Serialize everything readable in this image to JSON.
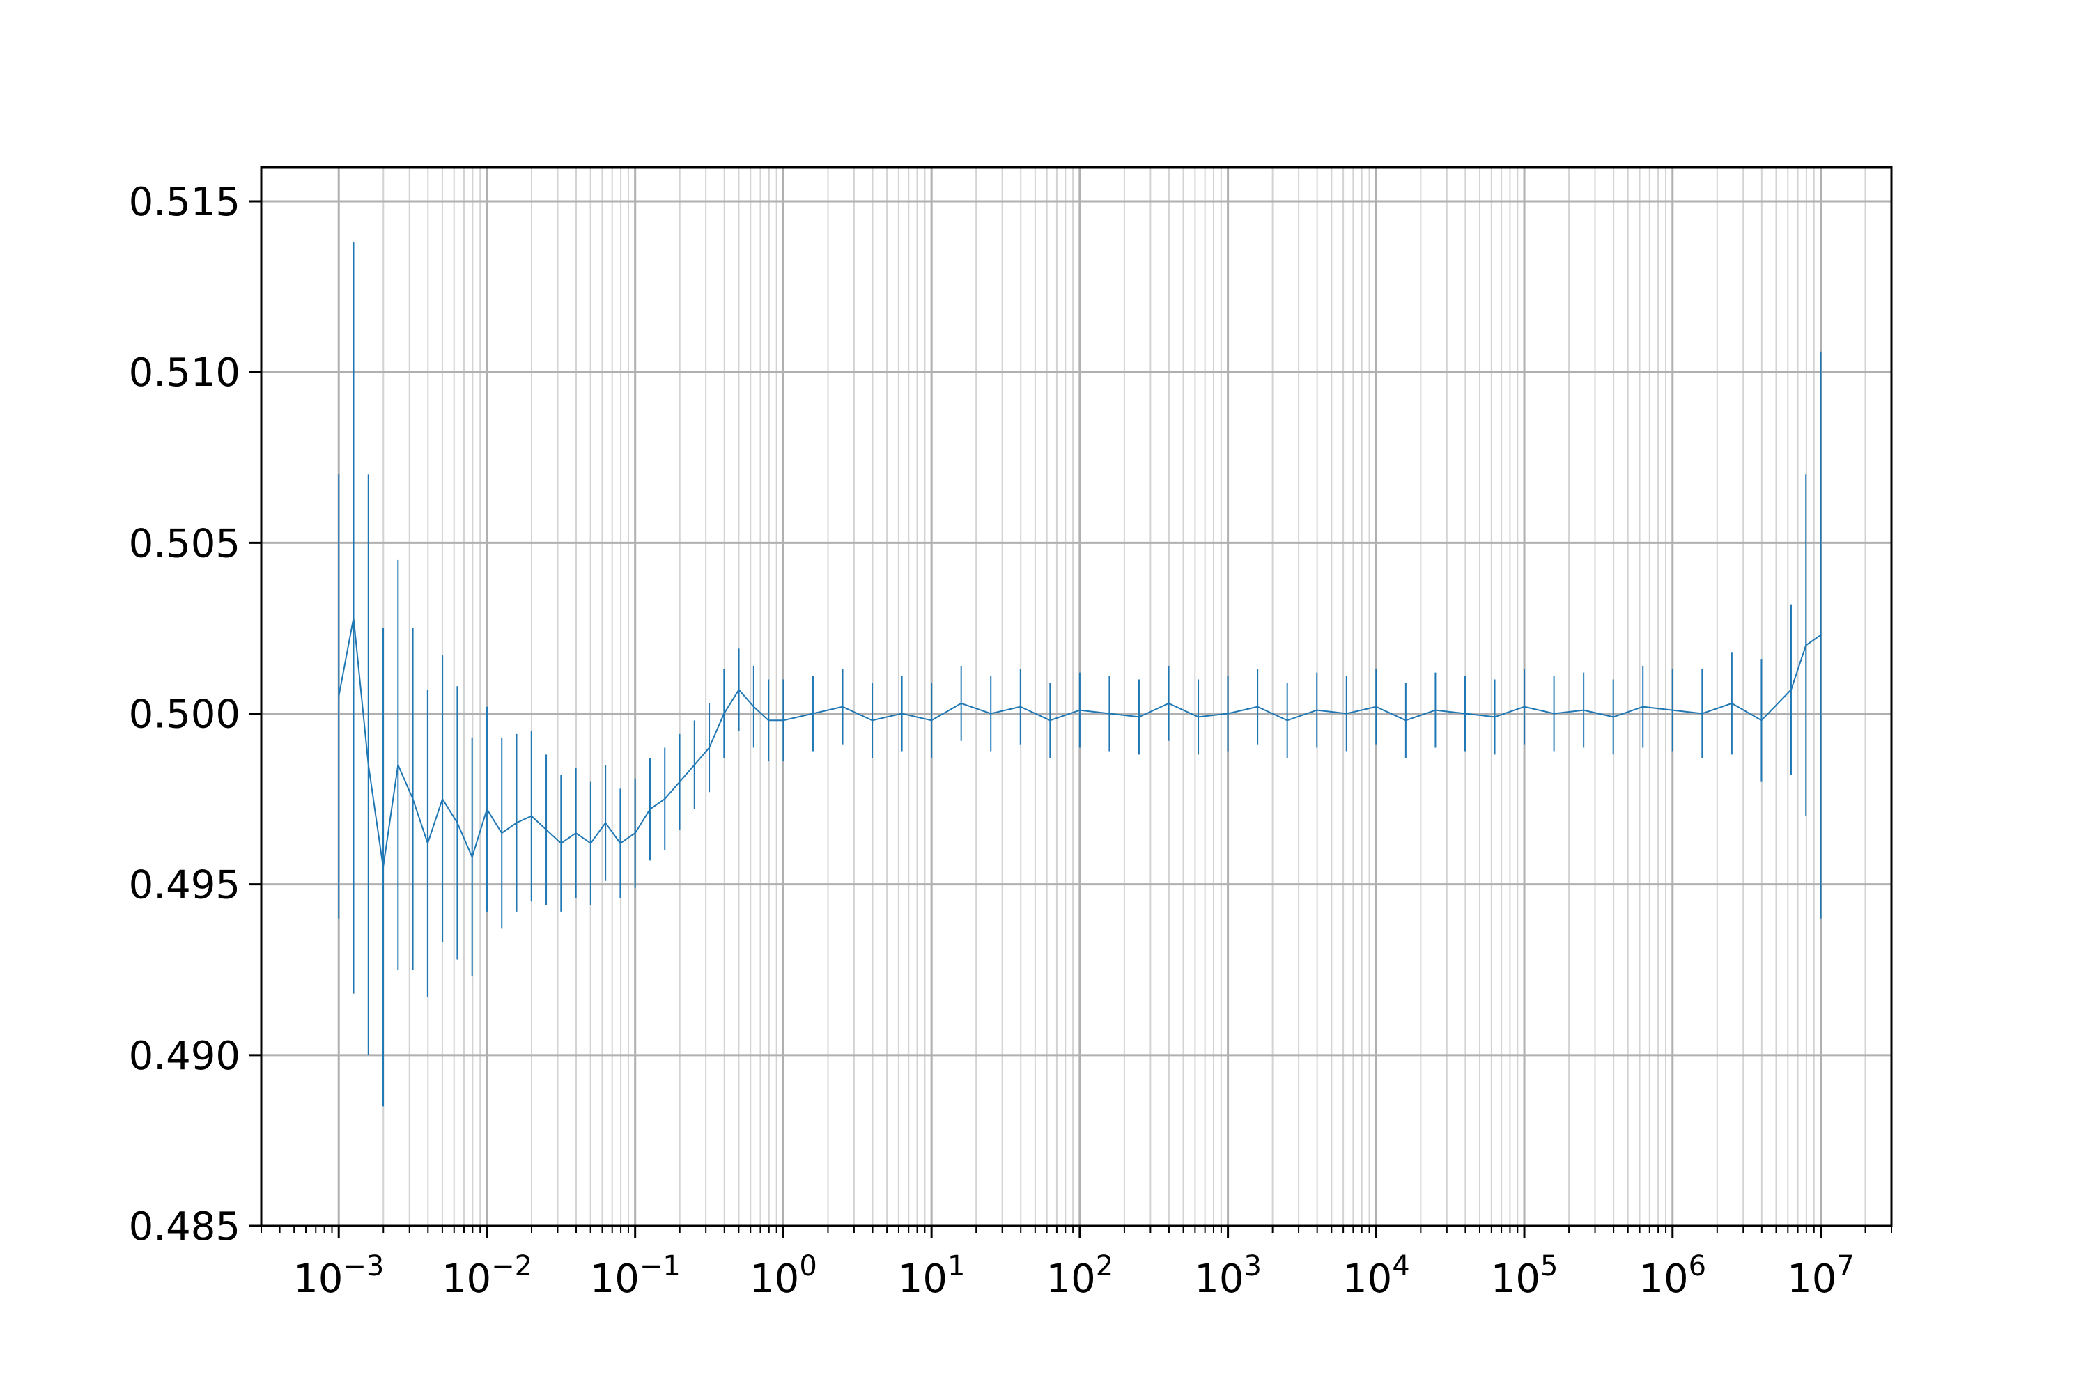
{
  "chart_data": {
    "type": "line",
    "title": "",
    "xlabel": "",
    "ylabel": "",
    "xscale": "log",
    "xlim": [
      0.0003,
      30000000
    ],
    "ylim": [
      0.485,
      0.516
    ],
    "grid": "major and minor, both axes",
    "legend": "none",
    "colors": {
      "series": "#1f77b4",
      "grid_major": "#b0b0b0",
      "grid_minor": "#d3d3d3",
      "axes": "#000000",
      "background": "#ffffff"
    },
    "x_ticks": [
      {
        "value": 0.001,
        "base": "10",
        "exp": "−3"
      },
      {
        "value": 0.01,
        "base": "10",
        "exp": "−2"
      },
      {
        "value": 0.1,
        "base": "10",
        "exp": "−1"
      },
      {
        "value": 1,
        "base": "10",
        "exp": "0"
      },
      {
        "value": 10,
        "base": "10",
        "exp": "1"
      },
      {
        "value": 100,
        "base": "10",
        "exp": "2"
      },
      {
        "value": 1000,
        "base": "10",
        "exp": "3"
      },
      {
        "value": 10000,
        "base": "10",
        "exp": "4"
      },
      {
        "value": 100000,
        "base": "10",
        "exp": "5"
      },
      {
        "value": 1000000,
        "base": "10",
        "exp": "6"
      },
      {
        "value": 10000000,
        "base": "10",
        "exp": "7"
      }
    ],
    "y_ticks": [
      {
        "value": 0.485,
        "label": "0.485"
      },
      {
        "value": 0.49,
        "label": "0.490"
      },
      {
        "value": 0.495,
        "label": "0.495"
      },
      {
        "value": 0.5,
        "label": "0.500"
      },
      {
        "value": 0.505,
        "label": "0.505"
      },
      {
        "value": 0.51,
        "label": "0.510"
      },
      {
        "value": 0.515,
        "label": "0.515"
      }
    ],
    "series": [
      {
        "x_log10": [
          -3.0,
          -2.9,
          -2.8,
          -2.7,
          -2.6,
          -2.5,
          -2.4,
          -2.3,
          -2.2,
          -2.1,
          -2.0,
          -1.9,
          -1.8,
          -1.7,
          -1.6,
          -1.5,
          -1.4,
          -1.3,
          -1.2,
          -1.1,
          -1.0,
          -0.9,
          -0.8,
          -0.7,
          -0.6,
          -0.5,
          -0.4,
          -0.3,
          -0.2,
          -0.1,
          0.0,
          0.2,
          0.4,
          0.6,
          0.8,
          1.0,
          1.2,
          1.4,
          1.6,
          1.8,
          2.0,
          2.2,
          2.4,
          2.6,
          2.8,
          3.0,
          3.2,
          3.4,
          3.6,
          3.8,
          4.0,
          4.2,
          4.4,
          4.6,
          4.8,
          5.0,
          5.2,
          5.4,
          5.6,
          5.8,
          6.0,
          6.2,
          6.4,
          6.6,
          6.8,
          6.9,
          7.0
        ],
        "y": [
          0.5005,
          0.5028,
          0.4985,
          0.4955,
          0.4985,
          0.4975,
          0.4962,
          0.4975,
          0.4968,
          0.4958,
          0.4972,
          0.4965,
          0.4968,
          0.497,
          0.4966,
          0.4962,
          0.4965,
          0.4962,
          0.4968,
          0.4962,
          0.4965,
          0.4972,
          0.4975,
          0.498,
          0.4985,
          0.499,
          0.5,
          0.5007,
          0.5002,
          0.4998,
          0.4998,
          0.5,
          0.5002,
          0.4998,
          0.5,
          0.4998,
          0.5003,
          0.5,
          0.5002,
          0.4998,
          0.5001,
          0.5,
          0.4999,
          0.5003,
          0.4999,
          0.5,
          0.5002,
          0.4998,
          0.5001,
          0.5,
          0.5002,
          0.4998,
          0.5001,
          0.5,
          0.4999,
          0.5002,
          0.5,
          0.5001,
          0.4999,
          0.5002,
          0.5001,
          0.5,
          0.5003,
          0.4998,
          0.5007,
          0.502,
          0.5023
        ],
        "yerr": [
          0.0065,
          0.011,
          0.0085,
          0.007,
          0.006,
          0.005,
          0.0045,
          0.0042,
          0.004,
          0.0035,
          0.003,
          0.0028,
          0.0026,
          0.0025,
          0.0022,
          0.002,
          0.0019,
          0.0018,
          0.0017,
          0.0016,
          0.0016,
          0.0015,
          0.0015,
          0.0014,
          0.0013,
          0.0013,
          0.0013,
          0.0012,
          0.0012,
          0.0012,
          0.0012,
          0.0011,
          0.0011,
          0.0011,
          0.0011,
          0.0011,
          0.0011,
          0.0011,
          0.0011,
          0.0011,
          0.0011,
          0.0011,
          0.0011,
          0.0011,
          0.0011,
          0.0011,
          0.0011,
          0.0011,
          0.0011,
          0.0011,
          0.0011,
          0.0011,
          0.0011,
          0.0011,
          0.0011,
          0.0011,
          0.0011,
          0.0011,
          0.0011,
          0.0012,
          0.0012,
          0.0013,
          0.0015,
          0.0018,
          0.0025,
          0.005,
          0.0083
        ]
      }
    ]
  }
}
